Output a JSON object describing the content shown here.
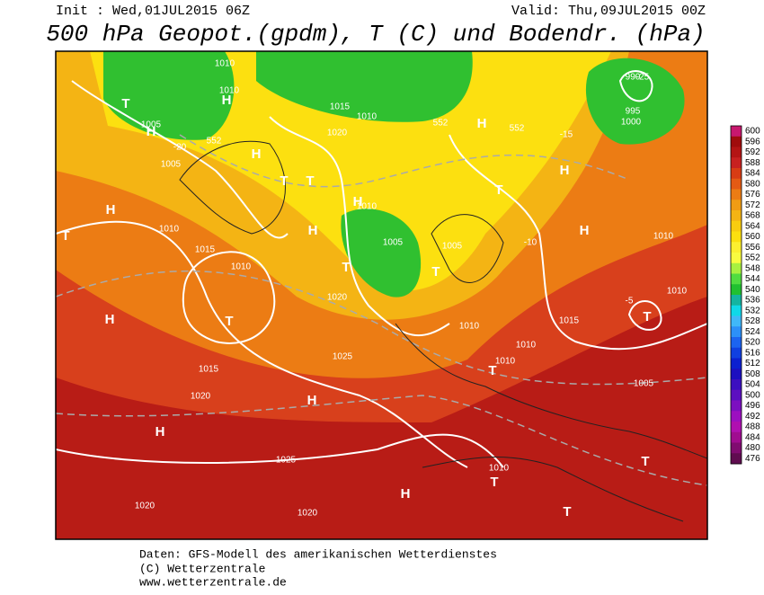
{
  "header": {
    "init": "Init : Wed,01JUL2015 06Z",
    "valid": "Valid: Thu,09JUL2015 00Z",
    "title": "500 hPa Geopot.(gpdm), T (C) und Bodendr. (hPa)"
  },
  "colorbar": {
    "levels": [
      600,
      596,
      592,
      588,
      584,
      580,
      576,
      572,
      568,
      564,
      560,
      556,
      552,
      548,
      544,
      540,
      536,
      532,
      528,
      524,
      520,
      516,
      512,
      508,
      504,
      500,
      496,
      492,
      488,
      484,
      480,
      476
    ],
    "colors": [
      "#c8186e",
      "#a00c0c",
      "#b41414",
      "#c82020",
      "#d83c14",
      "#e45a14",
      "#ec7c14",
      "#f09c14",
      "#f4b414",
      "#f8cc10",
      "#fce010",
      "#fcf030",
      "#f8fc40",
      "#a8f040",
      "#50dc40",
      "#20c030",
      "#14b4a0",
      "#10d8e8",
      "#40b8f8",
      "#2c90f8",
      "#1c64f0",
      "#1040e0",
      "#0c20d0",
      "#1c10c0",
      "#3c10c0",
      "#5c10c0",
      "#7c10c0",
      "#9c10c0",
      "#b010b0",
      "#a00c90",
      "#800c70",
      "#600c50"
    ]
  },
  "map_labels": [
    "1010",
    "1010",
    "1005",
    "1015",
    "1020",
    "1010",
    "H",
    "H",
    "T",
    "H",
    "T",
    "H",
    "T",
    "1005",
    "1010",
    "1015",
    "1010",
    "1020",
    "T",
    "T",
    "1005",
    "1005",
    "H",
    "1015",
    "1010",
    "H",
    "1010",
    "1025",
    "1020",
    "H",
    "1025",
    "1020",
    "1020",
    "T",
    "H",
    "T",
    "H",
    "1010",
    "1010",
    "T",
    "1005",
    "T",
    "1010",
    "1015",
    "1010",
    "T",
    "H",
    "990",
    "995",
    "1000",
    "H",
    "H",
    "T",
    "T",
    "H",
    "1010",
    "T",
    "552",
    "552",
    "552",
    "-20",
    "-15",
    "-10",
    "-5",
    "-25"
  ],
  "footer": [
    "Daten: GFS-Modell des amerikanischen Wetterdienstes",
    "(C) Wetterzentrale",
    "www.wetterzentrale.de"
  ]
}
